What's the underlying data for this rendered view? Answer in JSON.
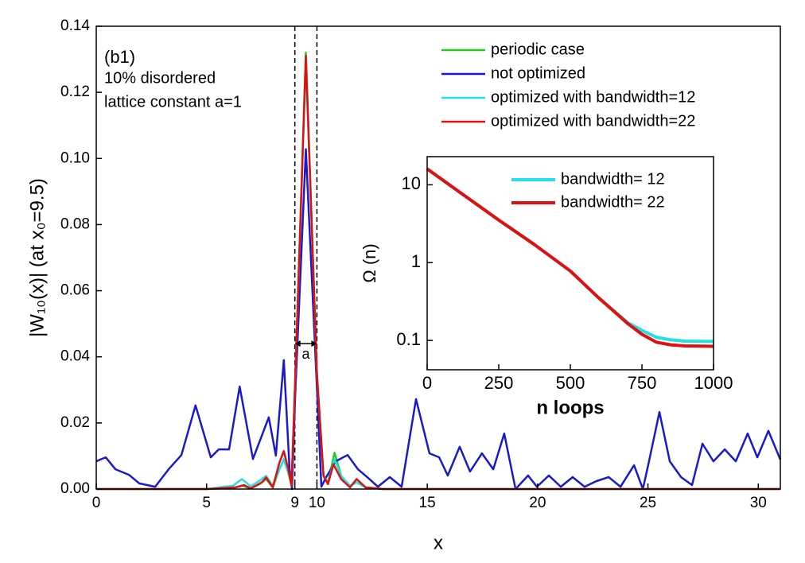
{
  "chart_data": [
    {
      "type": "line",
      "xlabel": "x",
      "ylabel": "|W₁₀(x)|  (at x₀=9.5)",
      "annotations": [
        "(b1)",
        "10% disordered",
        "lattice constant a=1",
        "a"
      ],
      "vlines": [
        9,
        10
      ],
      "arrow": [
        9,
        10,
        0.044
      ],
      "xlim": [
        0,
        31
      ],
      "xticks": [
        0,
        5,
        9,
        10,
        15,
        20,
        25,
        30
      ],
      "ylim": [
        0,
        0.14
      ],
      "yticks": [
        {
          "value": 0,
          "label": "0.00"
        },
        {
          "value": 0.02,
          "label": "0.02"
        },
        {
          "value": 0.04,
          "label": "0.04"
        },
        {
          "value": 0.06,
          "label": "0.06"
        },
        {
          "value": 0.08,
          "label": "0.08"
        },
        {
          "value": 0.1,
          "label": "0.10"
        },
        {
          "value": 0.12,
          "label": "0.12"
        },
        {
          "value": 0.14,
          "label": "0.14"
        }
      ],
      "legend": "upper right",
      "series": [
        {
          "name": "periodic case",
          "color": "#22cc22",
          "x": [
            0,
            5,
            6.2,
            6.6,
            7.0,
            7.4,
            7.7,
            8.0,
            8.3,
            8.5,
            8.7,
            8.85,
            9.0,
            9.5,
            10.0,
            10.3,
            10.5,
            10.8,
            11.1,
            11.5,
            11.8,
            12.2,
            13,
            31
          ],
          "values": [
            0,
            0,
            0.0003,
            0.001,
            0.0002,
            0.0015,
            0.003,
            0.0005,
            0.006,
            0.009,
            0.005,
            0.001,
            0.03,
            0.132,
            0.035,
            0.004,
            0.002,
            0.011,
            0.004,
            0.0005,
            0.003,
            0.0005,
            0,
            0
          ]
        },
        {
          "name": "not optimized",
          "color": "#1a1acc",
          "x": [
            0,
            0.43,
            0.87,
            1.48,
            1.95,
            2.67,
            3.28,
            3.86,
            4.5,
            5.19,
            5.55,
            6.02,
            6.5,
            7.1,
            7.82,
            8.14,
            8.5,
            8.76,
            8.87,
            9.01,
            9.5,
            10.02,
            10.2,
            10.42,
            10.85,
            11.39,
            11.86,
            12.4,
            12.76,
            13.3,
            13.84,
            14.49,
            15.1,
            15.54,
            15.93,
            16.47,
            16.94,
            17.48,
            17.99,
            18.49,
            19.0,
            19.57,
            19.97,
            20.51,
            21.05,
            21.59,
            22.13,
            22.67,
            23.22,
            23.76,
            24.37,
            24.77,
            25.05,
            25.52,
            25.99,
            26.5,
            27.0,
            27.47,
            27.97,
            28.48,
            28.98,
            29.52,
            29.96,
            30.46,
            31
          ],
          "values": [
            0.0084,
            0.0096,
            0.006,
            0.0043,
            0.0017,
            0.0007,
            0.006,
            0.0103,
            0.0253,
            0.0096,
            0.012,
            0.012,
            0.031,
            0.0091,
            0.0217,
            0.0101,
            0.039,
            0.006,
            0,
            0.0277,
            0.1028,
            0.0277,
            0.0007,
            0.0036,
            0.0084,
            0.0103,
            0.006,
            0.0029,
            0.0007,
            0.0036,
            0.0007,
            0.0272,
            0.0108,
            0.0096,
            0.0041,
            0.0128,
            0.0053,
            0.0108,
            0.006,
            0.0168,
            0,
            0.0041,
            0.0007,
            0.0041,
            0.0007,
            0.0036,
            0.0007,
            0.0024,
            0.0036,
            0.0007,
            0.0072,
            0,
            0.0084,
            0.0233,
            0.0084,
            0.0036,
            0.0012,
            0.0137,
            0.0084,
            0.012,
            0.0084,
            0.0168,
            0.0096,
            0.0176,
            0.0089
          ]
        },
        {
          "name": "optimized with bandwidth=12",
          "color": "#22e0e8",
          "x": [
            0,
            5,
            6.2,
            6.6,
            7.0,
            7.4,
            7.7,
            8.0,
            8.3,
            8.5,
            8.7,
            8.85,
            9.0,
            9.5,
            10.0,
            10.3,
            10.5,
            10.8,
            11.1,
            11.5,
            11.8,
            12.2,
            13,
            31
          ],
          "values": [
            0,
            0,
            0.001,
            0.003,
            0.0008,
            0.0025,
            0.004,
            0.001,
            0.006,
            0.009,
            0.005,
            0.001,
            0.03,
            0.13,
            0.035,
            0.004,
            0.002,
            0.009,
            0.004,
            0.001,
            0.002,
            0.0005,
            0,
            0
          ]
        },
        {
          "name": "optimized with bandwidth=22",
          "color": "#e01010",
          "x": [
            0,
            5,
            6.3,
            6.7,
            7.0,
            7.5,
            7.7,
            8.0,
            8.3,
            8.5,
            8.7,
            8.85,
            9.0,
            9.5,
            10.0,
            10.3,
            10.5,
            10.75,
            11.1,
            11.5,
            11.8,
            12.2,
            13,
            31
          ],
          "values": [
            0,
            0,
            0.0005,
            0.0012,
            0.0002,
            0.002,
            0.0035,
            0.0005,
            0.008,
            0.0115,
            0.006,
            0.001,
            0.03,
            0.131,
            0.035,
            0.004,
            0.0015,
            0.0075,
            0.003,
            0.0005,
            0.003,
            0.0005,
            0,
            0
          ]
        }
      ]
    },
    {
      "type": "line",
      "xlabel": "n loops",
      "ylabel": "Ω (n)",
      "xlim": [
        0,
        1000
      ],
      "xticks": [
        0,
        250,
        500,
        750,
        1000
      ],
      "ylim": [
        0.042,
        23
      ],
      "yticks": [
        0.1,
        1,
        10
      ],
      "ylog": true,
      "legend": "upper right",
      "series": [
        {
          "name": "bandwidth= 12",
          "color": "#22e0e8",
          "x": [
            0,
            125,
            250,
            375,
            500,
            600,
            700,
            750,
            800,
            850,
            900,
            1000
          ],
          "values": [
            16,
            7.5,
            3.53,
            1.7,
            0.78,
            0.35,
            0.17,
            0.135,
            0.11,
            0.102,
            0.098,
            0.097
          ]
        },
        {
          "name": "bandwidth= 22",
          "color": "#e01010",
          "x": [
            0,
            125,
            250,
            375,
            500,
            600,
            700,
            750,
            800,
            850,
            900,
            1000
          ],
          "values": [
            16,
            7.5,
            3.53,
            1.7,
            0.78,
            0.35,
            0.165,
            0.12,
            0.095,
            0.088,
            0.085,
            0.084
          ]
        }
      ]
    }
  ]
}
